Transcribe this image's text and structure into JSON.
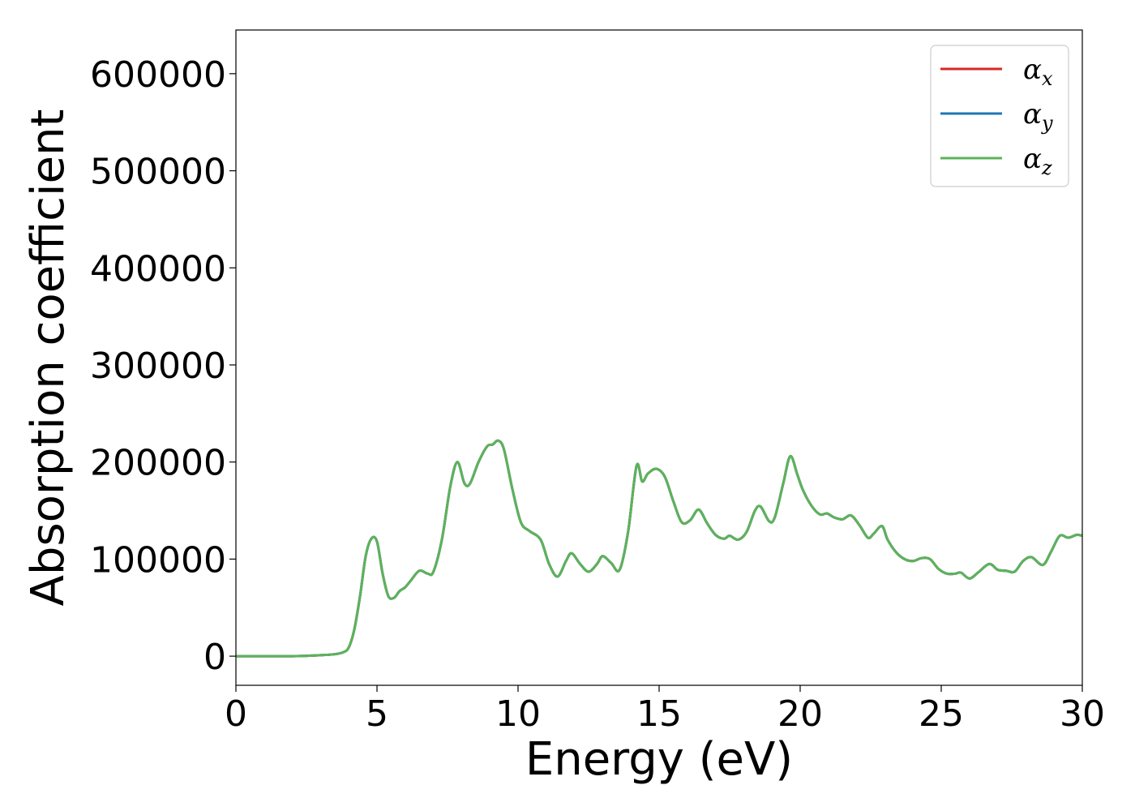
{
  "chart_data": {
    "type": "line",
    "title": "",
    "xlabel": "Energy (eV)",
    "ylabel": "Absorption coefficient",
    "xlim": [
      0,
      30
    ],
    "ylim": [
      -30000,
      645000
    ],
    "xticks": [
      0,
      5,
      10,
      15,
      20,
      25,
      30
    ],
    "yticks": [
      0,
      100000,
      200000,
      300000,
      400000,
      500000,
      600000
    ],
    "grid": false,
    "legend_position": "top-right",
    "x": [
      0,
      1,
      2,
      3,
      3.5,
      3.8,
      4.0,
      4.2,
      4.4,
      4.6,
      4.8,
      5.0,
      5.2,
      5.4,
      5.6,
      5.8,
      6.0,
      6.2,
      6.5,
      6.8,
      7.0,
      7.3,
      7.6,
      7.85,
      8.1,
      8.3,
      8.6,
      8.9,
      9.1,
      9.3,
      9.5,
      9.8,
      10.1,
      10.4,
      10.8,
      11.1,
      11.4,
      11.7,
      11.9,
      12.2,
      12.5,
      12.8,
      13.0,
      13.3,
      13.6,
      13.9,
      14.2,
      14.4,
      14.6,
      14.9,
      15.2,
      15.5,
      15.8,
      16.1,
      16.4,
      16.7,
      17.0,
      17.3,
      17.5,
      17.8,
      18.1,
      18.4,
      18.6,
      18.9,
      19.1,
      19.4,
      19.65,
      19.9,
      20.1,
      20.4,
      20.7,
      20.95,
      21.2,
      21.5,
      21.8,
      22.1,
      22.4,
      22.6,
      22.9,
      23.1,
      23.4,
      23.7,
      24.0,
      24.3,
      24.6,
      24.9,
      25.2,
      25.5,
      25.7,
      26.0,
      26.3,
      26.7,
      27.0,
      27.3,
      27.6,
      27.9,
      28.2,
      28.6,
      28.9,
      29.2,
      29.5,
      29.8,
      30.0
    ],
    "series": [
      {
        "name": "α",
        "subscript": "x",
        "color": "#d62728",
        "values": [
          0,
          0,
          0,
          1000,
          2000,
          4000,
          9000,
          28000,
          62000,
          103000,
          121000,
          118000,
          85000,
          62000,
          60000,
          67000,
          71000,
          78000,
          88000,
          85000,
          87000,
          120000,
          175000,
          200000,
          178000,
          178000,
          200000,
          216000,
          218000,
          222000,
          213000,
          172000,
          138000,
          129000,
          120000,
          95000,
          82000,
          98000,
          106000,
          95000,
          87000,
          95000,
          103000,
          96000,
          89000,
          128000,
          196000,
          180000,
          188000,
          193000,
          185000,
          160000,
          138000,
          140000,
          151000,
          137000,
          125000,
          121000,
          124000,
          120000,
          128000,
          150000,
          154000,
          139000,
          143000,
          178000,
          206000,
          187000,
          171000,
          155000,
          146000,
          147000,
          143000,
          141000,
          145000,
          135000,
          122000,
          126000,
          134000,
          120000,
          107000,
          100000,
          98000,
          101000,
          100000,
          90000,
          85000,
          85000,
          86000,
          80000,
          86000,
          95000,
          89000,
          88000,
          87000,
          98000,
          102000,
          94000,
          108000,
          124000,
          122000,
          125000,
          124000
        ]
      },
      {
        "name": "α",
        "subscript": "y",
        "color": "#1f77b4",
        "values": [
          0,
          0,
          0,
          1000,
          2000,
          4000,
          9000,
          28000,
          62000,
          103000,
          121000,
          118000,
          85000,
          62000,
          60000,
          67000,
          71000,
          78000,
          88000,
          85000,
          87000,
          120000,
          175000,
          200000,
          178000,
          178000,
          200000,
          216000,
          218000,
          222000,
          213000,
          172000,
          138000,
          129000,
          120000,
          95000,
          82000,
          98000,
          106000,
          95000,
          87000,
          95000,
          103000,
          96000,
          89000,
          128000,
          196000,
          180000,
          188000,
          193000,
          185000,
          160000,
          138000,
          140000,
          151000,
          137000,
          125000,
          121000,
          124000,
          120000,
          128000,
          150000,
          154000,
          139000,
          143000,
          178000,
          206000,
          187000,
          171000,
          155000,
          146000,
          147000,
          143000,
          141000,
          145000,
          135000,
          122000,
          126000,
          134000,
          120000,
          107000,
          100000,
          98000,
          101000,
          100000,
          90000,
          85000,
          85000,
          86000,
          80000,
          86000,
          95000,
          89000,
          88000,
          87000,
          98000,
          102000,
          94000,
          108000,
          124000,
          122000,
          125000,
          124000
        ]
      },
      {
        "name": "α",
        "subscript": "z",
        "color": "#5cb35a",
        "values": [
          0,
          0,
          0,
          1000,
          2000,
          4000,
          9000,
          28000,
          62000,
          103000,
          121000,
          118000,
          85000,
          62000,
          60000,
          67000,
          71000,
          78000,
          88000,
          85000,
          87000,
          120000,
          175000,
          200000,
          178000,
          178000,
          200000,
          216000,
          218000,
          222000,
          213000,
          172000,
          138000,
          129000,
          120000,
          95000,
          82000,
          98000,
          106000,
          95000,
          87000,
          95000,
          103000,
          96000,
          89000,
          128000,
          196000,
          180000,
          188000,
          193000,
          185000,
          160000,
          138000,
          140000,
          151000,
          137000,
          125000,
          121000,
          124000,
          120000,
          128000,
          150000,
          154000,
          139000,
          143000,
          178000,
          206000,
          187000,
          171000,
          155000,
          146000,
          147000,
          143000,
          141000,
          145000,
          135000,
          122000,
          126000,
          134000,
          120000,
          107000,
          100000,
          98000,
          101000,
          100000,
          90000,
          85000,
          85000,
          86000,
          80000,
          86000,
          95000,
          89000,
          88000,
          87000,
          98000,
          102000,
          94000,
          108000,
          124000,
          122000,
          125000,
          124000
        ]
      }
    ]
  }
}
